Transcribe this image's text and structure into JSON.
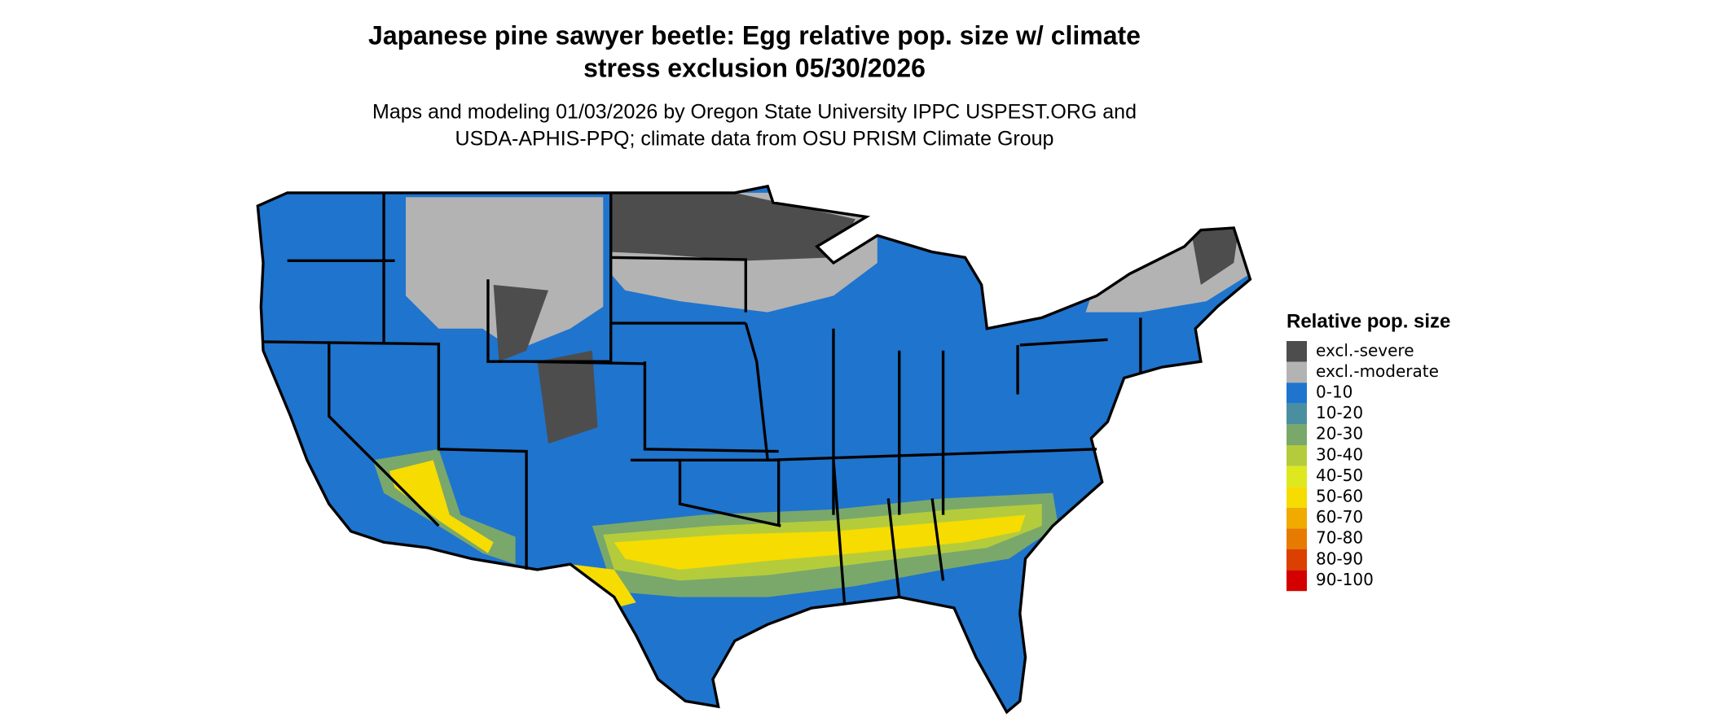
{
  "title": [
    "Japanese pine sawyer beetle: Egg relative pop. size w/ climate",
    "stress exclusion 05/30/2026"
  ],
  "subtitle": [
    "Maps and modeling 01/03/2026 by Oregon State University IPPC USPEST.ORG and",
    "USDA-APHIS-PPQ; climate data from OSU PRISM Climate Group"
  ],
  "legend": {
    "title": "Relative pop. size",
    "items": [
      {
        "label": "excl.-severe",
        "color": "#4d4d4d"
      },
      {
        "label": "excl.-moderate",
        "color": "#b3b3b3"
      },
      {
        "label": "0-10",
        "color": "#1f74cd"
      },
      {
        "label": "10-20",
        "color": "#4a8f9f"
      },
      {
        "label": "20-30",
        "color": "#7aa86a"
      },
      {
        "label": "30-40",
        "color": "#b4cc3c"
      },
      {
        "label": "40-50",
        "color": "#dde81e"
      },
      {
        "label": "50-60",
        "color": "#f6dc00"
      },
      {
        "label": "60-70",
        "color": "#f0aa00"
      },
      {
        "label": "70-80",
        "color": "#e77a00"
      },
      {
        "label": "80-90",
        "color": "#db4000"
      },
      {
        "label": "90-100",
        "color": "#d40000"
      }
    ]
  }
}
